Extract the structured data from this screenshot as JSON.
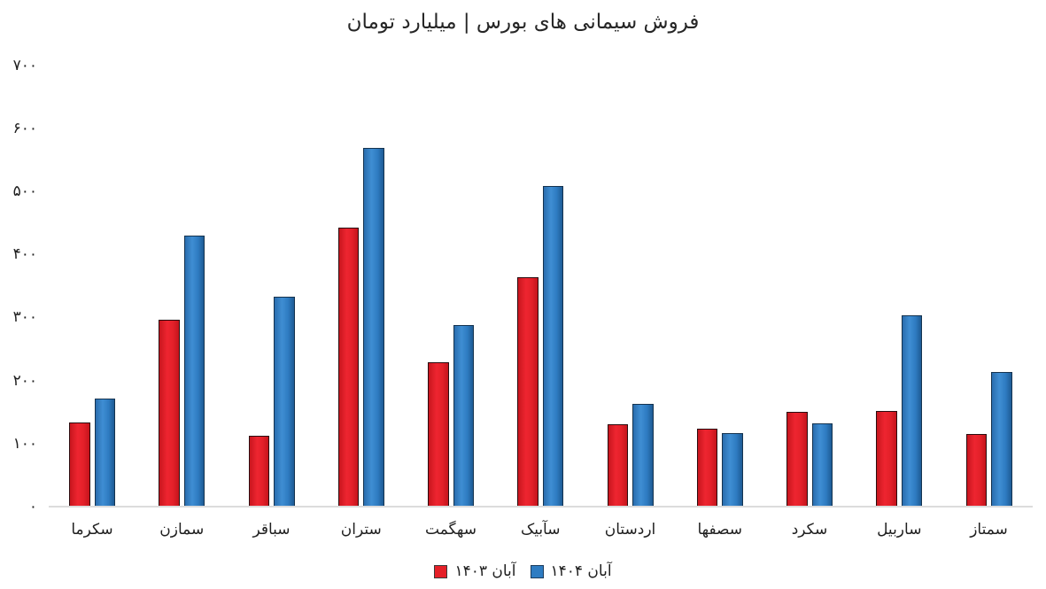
{
  "title": "فروش سیمانی های بورس | میلیارد تومان",
  "colors": {
    "series_1403": "#e52028",
    "series_1404": "#2e7cc2",
    "axis_line": "#dcdcdc",
    "text": "#1f1f1f"
  },
  "legend": {
    "items": [
      {
        "label": "آبان ۱۴۰۳",
        "color": "#e52028",
        "swatch": "red"
      },
      {
        "label": "آبان ۱۴۰۴",
        "color": "#2e7cc2",
        "swatch": "blue"
      }
    ]
  },
  "chart_data": {
    "type": "bar",
    "title": "فروش سیمانی های بورس | میلیارد تومان",
    "xlabel": "",
    "ylabel": "",
    "ylim": [
      0,
      700
    ],
    "grid": false,
    "legend_position": "bottom",
    "rtl": true,
    "categories": [
      "سکرما",
      "سمازن",
      "سباقر",
      "ستران",
      "سهگمت",
      "سآبیک",
      "اردستان",
      "سصفها",
      "سکرد",
      "ساربیل",
      "سمتاز"
    ],
    "series": [
      {
        "name": "آبان ۱۴۰۳",
        "color": "#e52028",
        "values": [
          134,
          296,
          112,
          443,
          229,
          364,
          131,
          124,
          150,
          152,
          115
        ]
      },
      {
        "name": "آبان ۱۴۰۴",
        "color": "#2e7cc2",
        "values": [
          171,
          430,
          333,
          569,
          288,
          509,
          163,
          117,
          132,
          304,
          214
        ]
      }
    ],
    "yticks": [
      {
        "value": 700,
        "label": "۷۰۰"
      },
      {
        "value": 600,
        "label": "۶۰۰"
      },
      {
        "value": 500,
        "label": "۵۰۰"
      },
      {
        "value": 400,
        "label": "۴۰۰"
      },
      {
        "value": 300,
        "label": "۳۰۰"
      },
      {
        "value": 200,
        "label": "۲۰۰"
      },
      {
        "value": 100,
        "label": "۱۰۰"
      },
      {
        "value": 0,
        "label": "۰"
      }
    ]
  }
}
